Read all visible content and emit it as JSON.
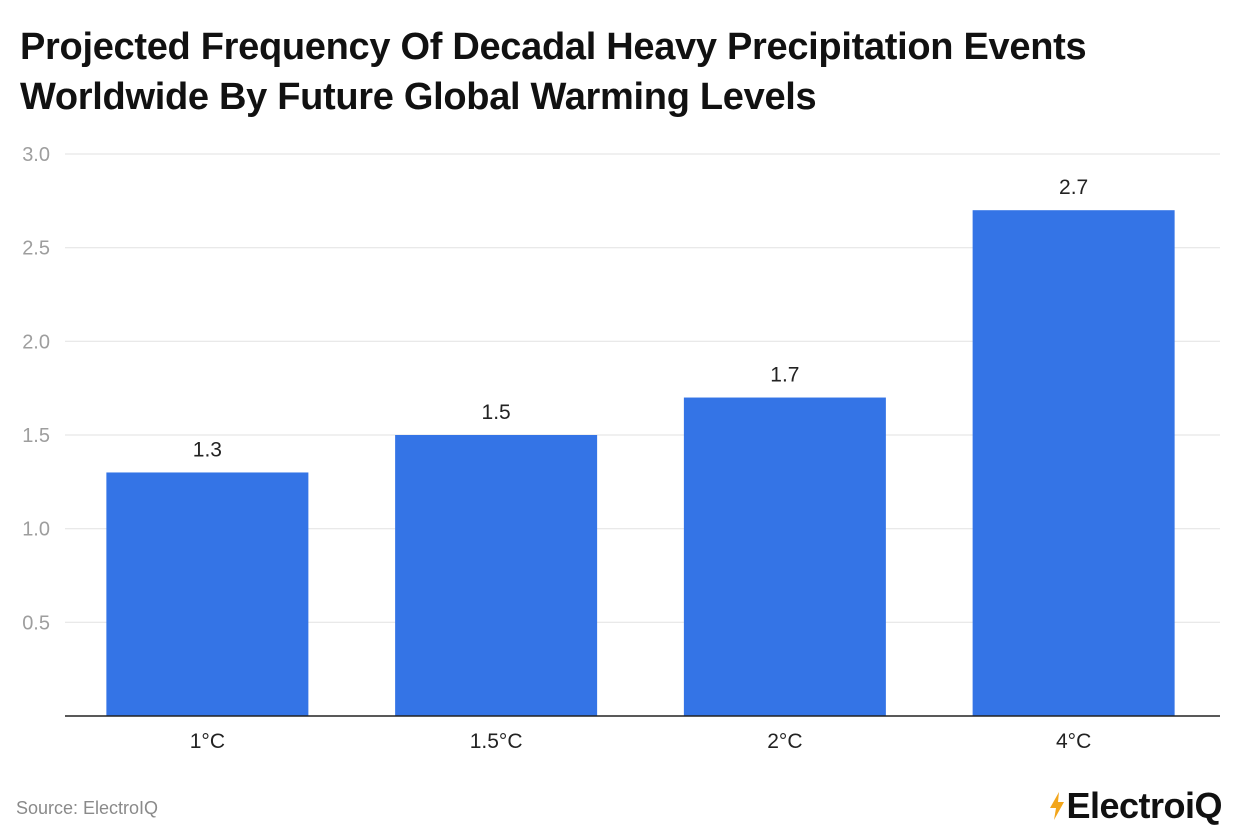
{
  "title": "Projected Frequency Of Decadal Heavy Precipitation Events Worldwide By Future Global Warming Levels",
  "source": "Source: ElectroIQ",
  "logo": {
    "text": "ElectroiQ"
  },
  "colors": {
    "bar": "#3474e6",
    "grid": "#e6e6e6",
    "axis": "#222222",
    "logo_accent": "#f2a51a"
  },
  "chart_data": {
    "type": "bar",
    "categories": [
      "1°C",
      "1.5°C",
      "2°C",
      "4°C"
    ],
    "values": [
      1.3,
      1.5,
      1.7,
      2.7
    ],
    "data_labels": [
      "1.3",
      "1.5",
      "1.7",
      "2.7"
    ],
    "title": "Projected Frequency Of Decadal Heavy Precipitation Events Worldwide By Future Global Warming Levels",
    "xlabel": "",
    "ylabel": "",
    "ylim": [
      0,
      3.0
    ],
    "yticks": [
      "0.5",
      "1.0",
      "1.5",
      "2.0",
      "2.5",
      "3.0"
    ],
    "grid": true,
    "legend": "none"
  }
}
